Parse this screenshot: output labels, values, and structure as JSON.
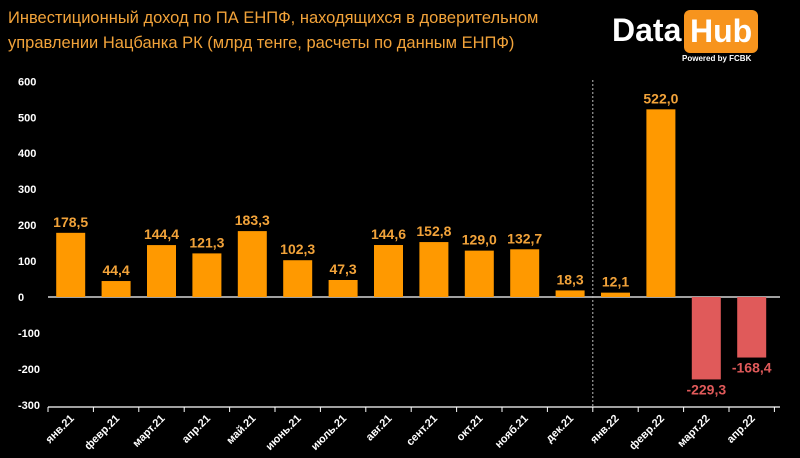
{
  "header": {
    "title": "Инвестиционный доход по ПА ЕНПФ, находящихся в доверительном управлении Нацбанка РК (млрд тенге, расчеты по данным ЕНПФ)"
  },
  "logo": {
    "word1": "Data",
    "word2": "Hub",
    "tagline": "Powered by FCBK"
  },
  "colors": {
    "positive": "#ff9900",
    "negative": "#e05a5a",
    "positive_label": "#f2a33a",
    "negative_label": "#e05a5a",
    "axis": "#ffffff"
  },
  "chart_data": {
    "type": "bar",
    "title": "Инвестиционный доход по ПА ЕНПФ, находящихся в доверительном управлении Нацбанка РК (млрд тенге, расчеты по данным ЕНПФ)",
    "categories": [
      "янв.21",
      "февр.21",
      "март.21",
      "апр.21",
      "май.21",
      "июнь.21",
      "июль.21",
      "авг.21",
      "сент.21",
      "окт.21",
      "нояб.21",
      "дек.21",
      "янв.22",
      "февр.22",
      "март.22",
      "апр.22"
    ],
    "values": [
      178.5,
      44.4,
      144.4,
      121.3,
      183.3,
      102.3,
      47.3,
      144.6,
      152.8,
      129.0,
      132.7,
      18.3,
      12.1,
      522.0,
      -229.3,
      -168.4
    ],
    "value_labels": [
      "178,5",
      "44,4",
      "144,4",
      "121,3",
      "183,3",
      "102,3",
      "47,3",
      "144,6",
      "152,8",
      "129,0",
      "132,7",
      "18,3",
      "12,1",
      "522,0",
      "-229,3",
      "-168,4"
    ],
    "yticks": [
      "600",
      "500",
      "400",
      "300",
      "200",
      "100",
      "0",
      "-100",
      "-200",
      "-300"
    ],
    "ytick_values": [
      600,
      500,
      400,
      300,
      200,
      100,
      0,
      -100,
      -200,
      -300
    ],
    "ylim": [
      -300,
      600
    ],
    "xlabel": "",
    "ylabel": "",
    "grid": false,
    "legend": "none",
    "divider_after_index": 11
  }
}
